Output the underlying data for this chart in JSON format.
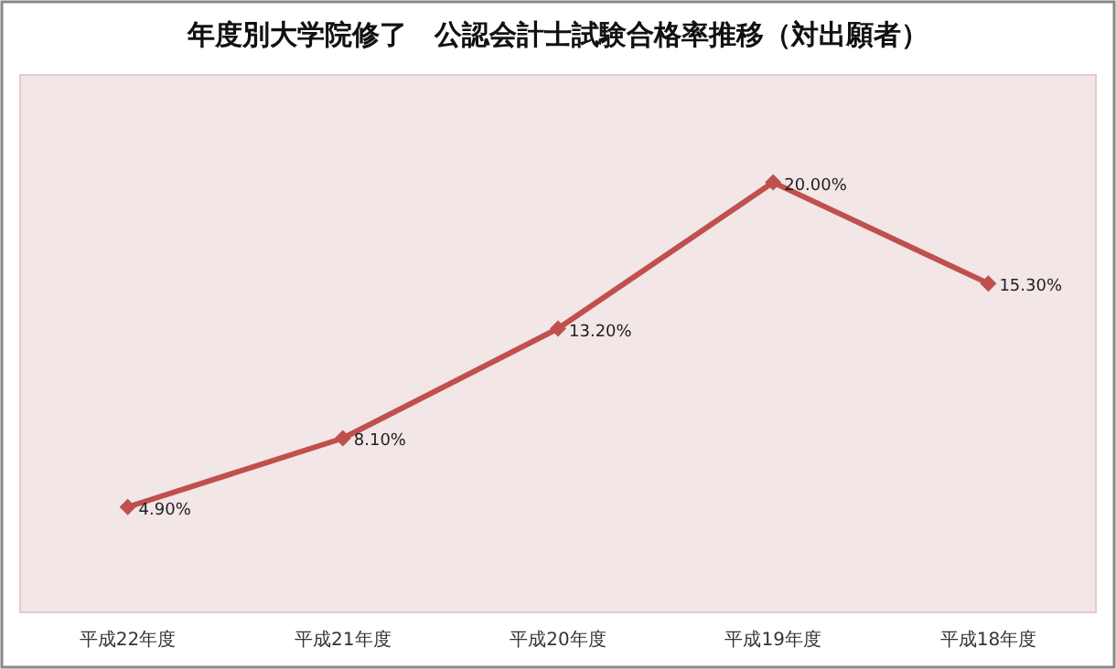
{
  "chart_data": {
    "type": "line",
    "title": "年度別大学院修了　公認会計士試験合格率推移（対出願者）",
    "categories": [
      "平成22年度",
      "平成21年度",
      "平成20年度",
      "平成19年度",
      "平成18年度"
    ],
    "series": [
      {
        "color": "#c0504d",
        "values": [
          4.9,
          8.1,
          13.2,
          20.0,
          15.3
        ],
        "value_labels": [
          "4.90%",
          "8.10%",
          "13.20%",
          "20.00%",
          "15.30%"
        ]
      }
    ],
    "ylim": [
      0,
      25
    ],
    "marker": "diamond",
    "line_style": "solid"
  }
}
